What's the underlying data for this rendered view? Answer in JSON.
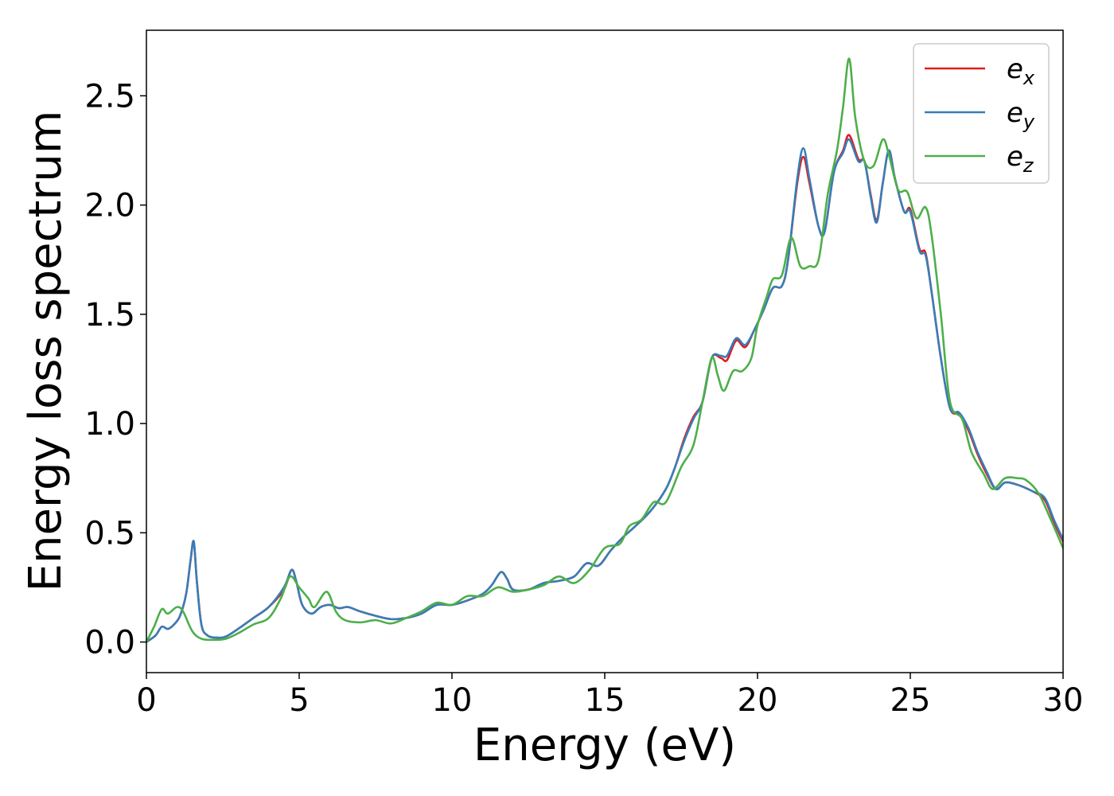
{
  "chart_data": {
    "type": "line",
    "title": "",
    "xlabel": "Energy (eV)",
    "ylabel": "Energy loss spectrum",
    "xlim": [
      0,
      30
    ],
    "ylim": [
      -0.14,
      2.8
    ],
    "xticks": [
      0,
      5,
      10,
      15,
      20,
      25,
      30
    ],
    "yticks": [
      0.0,
      0.5,
      1.0,
      1.5,
      2.0,
      2.5
    ],
    "xtick_labels": [
      "0",
      "5",
      "10",
      "15",
      "20",
      "25",
      "30"
    ],
    "ytick_labels": [
      "0.0",
      "0.5",
      "1.0",
      "1.5",
      "2.0",
      "2.5"
    ],
    "grid": false,
    "legend_position": "top-right",
    "series": [
      {
        "name": "e_x",
        "legend_base": "e",
        "legend_sub": "x",
        "color": "#e41a1c",
        "points": [
          [
            0,
            0
          ],
          [
            0.3,
            0.03
          ],
          [
            0.5,
            0.07
          ],
          [
            0.7,
            0.06
          ],
          [
            0.9,
            0.08
          ],
          [
            1.1,
            0.12
          ],
          [
            1.3,
            0.22
          ],
          [
            1.45,
            0.38
          ],
          [
            1.55,
            0.46
          ],
          [
            1.65,
            0.28
          ],
          [
            1.8,
            0.08
          ],
          [
            2.0,
            0.03
          ],
          [
            2.3,
            0.02
          ],
          [
            2.6,
            0.025
          ],
          [
            3.0,
            0.06
          ],
          [
            3.5,
            0.11
          ],
          [
            4.0,
            0.16
          ],
          [
            4.5,
            0.24
          ],
          [
            4.75,
            0.33
          ],
          [
            4.9,
            0.28
          ],
          [
            5.1,
            0.17
          ],
          [
            5.4,
            0.13
          ],
          [
            5.7,
            0.16
          ],
          [
            6.0,
            0.17
          ],
          [
            6.3,
            0.155
          ],
          [
            6.6,
            0.16
          ],
          [
            7.0,
            0.14
          ],
          [
            7.5,
            0.12
          ],
          [
            8.0,
            0.105
          ],
          [
            8.5,
            0.11
          ],
          [
            9.0,
            0.13
          ],
          [
            9.5,
            0.17
          ],
          [
            10.0,
            0.17
          ],
          [
            10.5,
            0.19
          ],
          [
            11.0,
            0.22
          ],
          [
            11.3,
            0.26
          ],
          [
            11.6,
            0.32
          ],
          [
            11.8,
            0.29
          ],
          [
            12.0,
            0.24
          ],
          [
            12.5,
            0.24
          ],
          [
            13.0,
            0.27
          ],
          [
            13.5,
            0.28
          ],
          [
            14.0,
            0.3
          ],
          [
            14.4,
            0.36
          ],
          [
            14.8,
            0.35
          ],
          [
            15.2,
            0.42
          ],
          [
            15.6,
            0.48
          ],
          [
            16.0,
            0.53
          ],
          [
            16.5,
            0.6
          ],
          [
            17.0,
            0.7
          ],
          [
            17.3,
            0.8
          ],
          [
            17.6,
            0.93
          ],
          [
            17.9,
            1.03
          ],
          [
            18.2,
            1.1
          ],
          [
            18.5,
            1.3
          ],
          [
            18.8,
            1.3
          ],
          [
            19.0,
            1.29
          ],
          [
            19.3,
            1.38
          ],
          [
            19.6,
            1.35
          ],
          [
            19.9,
            1.43
          ],
          [
            20.2,
            1.52
          ],
          [
            20.5,
            1.62
          ],
          [
            20.8,
            1.63
          ],
          [
            21.0,
            1.75
          ],
          [
            21.3,
            2.1
          ],
          [
            21.5,
            2.22
          ],
          [
            21.7,
            2.1
          ],
          [
            22.0,
            1.9
          ],
          [
            22.2,
            1.88
          ],
          [
            22.5,
            2.15
          ],
          [
            22.8,
            2.25
          ],
          [
            23.0,
            2.32
          ],
          [
            23.3,
            2.21
          ],
          [
            23.5,
            2.2
          ],
          [
            23.7,
            2.05
          ],
          [
            23.9,
            1.93
          ],
          [
            24.1,
            2.1
          ],
          [
            24.3,
            2.25
          ],
          [
            24.5,
            2.12
          ],
          [
            24.8,
            1.97
          ],
          [
            25.0,
            1.98
          ],
          [
            25.3,
            1.8
          ],
          [
            25.5,
            1.78
          ],
          [
            25.7,
            1.6
          ],
          [
            26.0,
            1.3
          ],
          [
            26.3,
            1.07
          ],
          [
            26.6,
            1.04
          ],
          [
            26.9,
            0.97
          ],
          [
            27.2,
            0.86
          ],
          [
            27.5,
            0.77
          ],
          [
            27.8,
            0.7
          ],
          [
            28.1,
            0.73
          ],
          [
            28.5,
            0.72
          ],
          [
            29.0,
            0.69
          ],
          [
            29.4,
            0.65
          ],
          [
            29.7,
            0.55
          ],
          [
            30.0,
            0.46
          ]
        ]
      },
      {
        "name": "e_y",
        "legend_base": "e",
        "legend_sub": "y",
        "color": "#377eb8",
        "points": [
          [
            0,
            0
          ],
          [
            0.3,
            0.03
          ],
          [
            0.5,
            0.07
          ],
          [
            0.7,
            0.06
          ],
          [
            0.9,
            0.08
          ],
          [
            1.1,
            0.12
          ],
          [
            1.3,
            0.22
          ],
          [
            1.45,
            0.38
          ],
          [
            1.55,
            0.46
          ],
          [
            1.65,
            0.28
          ],
          [
            1.8,
            0.08
          ],
          [
            2.0,
            0.03
          ],
          [
            2.3,
            0.02
          ],
          [
            2.6,
            0.025
          ],
          [
            3.0,
            0.06
          ],
          [
            3.5,
            0.11
          ],
          [
            4.0,
            0.16
          ],
          [
            4.5,
            0.25
          ],
          [
            4.75,
            0.33
          ],
          [
            4.9,
            0.28
          ],
          [
            5.1,
            0.17
          ],
          [
            5.4,
            0.13
          ],
          [
            5.7,
            0.16
          ],
          [
            6.0,
            0.17
          ],
          [
            6.3,
            0.155
          ],
          [
            6.6,
            0.16
          ],
          [
            7.0,
            0.14
          ],
          [
            7.5,
            0.12
          ],
          [
            8.0,
            0.105
          ],
          [
            8.5,
            0.11
          ],
          [
            9.0,
            0.13
          ],
          [
            9.5,
            0.17
          ],
          [
            10.0,
            0.17
          ],
          [
            10.5,
            0.19
          ],
          [
            11.0,
            0.22
          ],
          [
            11.3,
            0.26
          ],
          [
            11.6,
            0.32
          ],
          [
            11.8,
            0.29
          ],
          [
            12.0,
            0.24
          ],
          [
            12.5,
            0.24
          ],
          [
            13.0,
            0.27
          ],
          [
            13.5,
            0.28
          ],
          [
            14.0,
            0.3
          ],
          [
            14.4,
            0.36
          ],
          [
            14.8,
            0.35
          ],
          [
            15.2,
            0.42
          ],
          [
            15.6,
            0.48
          ],
          [
            16.0,
            0.53
          ],
          [
            16.5,
            0.6
          ],
          [
            17.0,
            0.7
          ],
          [
            17.3,
            0.8
          ],
          [
            17.6,
            0.92
          ],
          [
            17.9,
            1.02
          ],
          [
            18.2,
            1.1
          ],
          [
            18.5,
            1.3
          ],
          [
            18.8,
            1.31
          ],
          [
            19.0,
            1.31
          ],
          [
            19.3,
            1.39
          ],
          [
            19.6,
            1.36
          ],
          [
            19.9,
            1.43
          ],
          [
            20.2,
            1.52
          ],
          [
            20.5,
            1.62
          ],
          [
            20.8,
            1.63
          ],
          [
            21.0,
            1.75
          ],
          [
            21.3,
            2.12
          ],
          [
            21.5,
            2.26
          ],
          [
            21.7,
            2.12
          ],
          [
            22.0,
            1.9
          ],
          [
            22.2,
            1.88
          ],
          [
            22.5,
            2.15
          ],
          [
            22.8,
            2.24
          ],
          [
            23.0,
            2.3
          ],
          [
            23.3,
            2.2
          ],
          [
            23.5,
            2.2
          ],
          [
            23.7,
            2.04
          ],
          [
            23.9,
            1.92
          ],
          [
            24.1,
            2.1
          ],
          [
            24.3,
            2.25
          ],
          [
            24.5,
            2.12
          ],
          [
            24.8,
            1.97
          ],
          [
            25.0,
            1.97
          ],
          [
            25.3,
            1.79
          ],
          [
            25.5,
            1.77
          ],
          [
            25.7,
            1.6
          ],
          [
            26.0,
            1.3
          ],
          [
            26.3,
            1.07
          ],
          [
            26.6,
            1.05
          ],
          [
            26.9,
            0.98
          ],
          [
            27.2,
            0.87
          ],
          [
            27.5,
            0.78
          ],
          [
            27.8,
            0.7
          ],
          [
            28.1,
            0.73
          ],
          [
            28.5,
            0.72
          ],
          [
            29.0,
            0.69
          ],
          [
            29.4,
            0.66
          ],
          [
            29.7,
            0.56
          ],
          [
            30.0,
            0.47
          ]
        ]
      },
      {
        "name": "e_z",
        "legend_base": "e",
        "legend_sub": "z",
        "color": "#4daf4a",
        "points": [
          [
            0,
            0
          ],
          [
            0.25,
            0.07
          ],
          [
            0.5,
            0.15
          ],
          [
            0.7,
            0.13
          ],
          [
            1.0,
            0.16
          ],
          [
            1.2,
            0.14
          ],
          [
            1.5,
            0.05
          ],
          [
            1.8,
            0.015
          ],
          [
            2.2,
            0.01
          ],
          [
            2.6,
            0.015
          ],
          [
            3.0,
            0.04
          ],
          [
            3.5,
            0.08
          ],
          [
            4.0,
            0.11
          ],
          [
            4.4,
            0.2
          ],
          [
            4.7,
            0.3
          ],
          [
            5.0,
            0.25
          ],
          [
            5.3,
            0.2
          ],
          [
            5.5,
            0.16
          ],
          [
            5.9,
            0.23
          ],
          [
            6.2,
            0.14
          ],
          [
            6.5,
            0.1
          ],
          [
            7.0,
            0.09
          ],
          [
            7.5,
            0.1
          ],
          [
            8.0,
            0.085
          ],
          [
            8.5,
            0.11
          ],
          [
            9.0,
            0.14
          ],
          [
            9.5,
            0.18
          ],
          [
            10.0,
            0.17
          ],
          [
            10.5,
            0.21
          ],
          [
            11.0,
            0.21
          ],
          [
            11.5,
            0.25
          ],
          [
            12.0,
            0.23
          ],
          [
            12.5,
            0.24
          ],
          [
            13.0,
            0.26
          ],
          [
            13.5,
            0.3
          ],
          [
            14.0,
            0.27
          ],
          [
            14.5,
            0.33
          ],
          [
            15.0,
            0.43
          ],
          [
            15.5,
            0.45
          ],
          [
            15.8,
            0.53
          ],
          [
            16.2,
            0.56
          ],
          [
            16.6,
            0.64
          ],
          [
            17.0,
            0.64
          ],
          [
            17.5,
            0.8
          ],
          [
            17.9,
            0.9
          ],
          [
            18.2,
            1.1
          ],
          [
            18.5,
            1.3
          ],
          [
            18.7,
            1.22
          ],
          [
            18.9,
            1.15
          ],
          [
            19.2,
            1.24
          ],
          [
            19.5,
            1.24
          ],
          [
            19.8,
            1.3
          ],
          [
            20.0,
            1.45
          ],
          [
            20.3,
            1.58
          ],
          [
            20.5,
            1.66
          ],
          [
            20.8,
            1.68
          ],
          [
            21.1,
            1.85
          ],
          [
            21.4,
            1.72
          ],
          [
            21.7,
            1.72
          ],
          [
            22.0,
            1.75
          ],
          [
            22.3,
            2.05
          ],
          [
            22.6,
            2.25
          ],
          [
            22.8,
            2.45
          ],
          [
            23.0,
            2.67
          ],
          [
            23.2,
            2.4
          ],
          [
            23.5,
            2.2
          ],
          [
            23.8,
            2.18
          ],
          [
            24.1,
            2.3
          ],
          [
            24.3,
            2.23
          ],
          [
            24.6,
            2.07
          ],
          [
            24.9,
            2.06
          ],
          [
            25.2,
            1.94
          ],
          [
            25.5,
            1.99
          ],
          [
            25.7,
            1.86
          ],
          [
            26.0,
            1.5
          ],
          [
            26.3,
            1.1
          ],
          [
            26.7,
            1.02
          ],
          [
            27.0,
            0.87
          ],
          [
            27.4,
            0.77
          ],
          [
            27.7,
            0.7
          ],
          [
            28.1,
            0.75
          ],
          [
            28.5,
            0.75
          ],
          [
            28.8,
            0.74
          ],
          [
            29.2,
            0.68
          ],
          [
            29.6,
            0.56
          ],
          [
            30.0,
            0.43
          ]
        ]
      }
    ]
  }
}
